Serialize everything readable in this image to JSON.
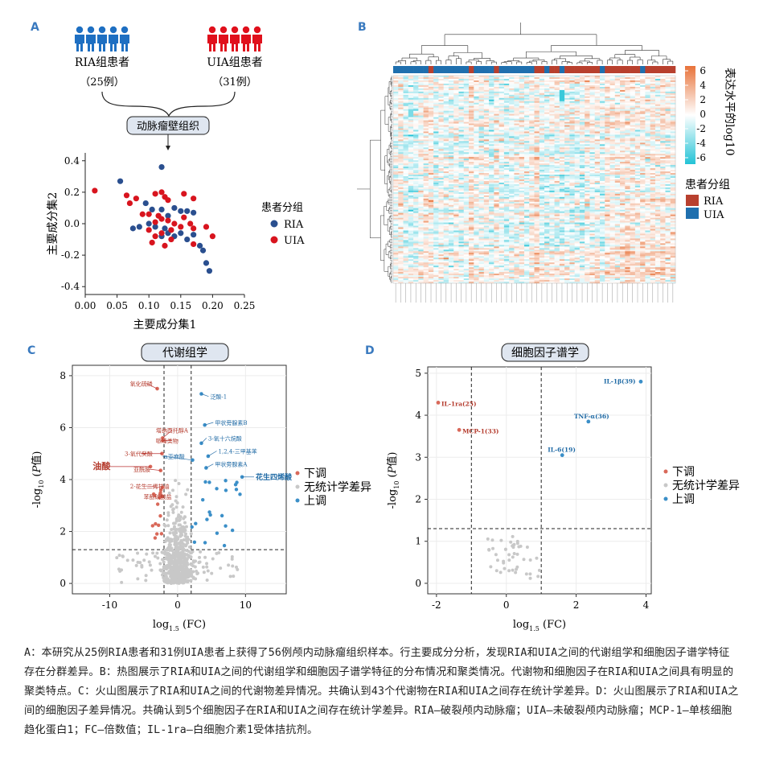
{
  "panels": {
    "a": "A",
    "b": "B",
    "c": "C",
    "d": "D"
  },
  "panel_a": {
    "group1_label": "RIA组患者",
    "group1_count": "（25例）",
    "group2_label": "UIA组患者",
    "group2_count": "（31例）",
    "sample_box": "动脉瘤壁组织",
    "colors": {
      "ria": "#1e6fc2",
      "uia": "#e0101c",
      "ria_point": "#2a4f8f",
      "uia_point": "#d8141e"
    }
  },
  "panel_b": {
    "colorbar_title": "表达水平的log10",
    "colorbar_ticks": [
      "6",
      "4",
      "2",
      "0",
      "-2",
      "-4",
      "-6"
    ],
    "group_legend_title": "患者分组",
    "group_legend": [
      "RIA",
      "UIA"
    ],
    "colors": {
      "high": "#e8733a",
      "mid": "#ffffff",
      "low": "#23c3d6",
      "ria": "#b8402e",
      "uia": "#1f6fae"
    }
  },
  "panel_c": {
    "title": "代谢组学"
  },
  "panel_d": {
    "title": "细胞因子谱学"
  },
  "volcano_legend": {
    "down": "下调",
    "ns": "无统计学差异",
    "up": "上调",
    "colors": {
      "down": "#d9695a",
      "ns": "#c8c8c8",
      "up": "#3b8fc8"
    }
  },
  "caption": "A：本研究从25例RIA患者和31例UIA患者上获得了56例颅内动脉瘤组织样本。行主要成分分析，发现RIA和UIA之间的代谢组学和细胞因子谱学特征存在分群差异。B：热图展示了RIA和UIA之间的代谢组学和细胞因子谱学特征的分布情况和聚类情况。代谢物和细胞因子在RIA和UIA之间具有明显的聚类特点。C：火山图展示了RIA和UIA之间的代谢物差异情况。共确认到43个代谢物在RIA和UIA之间存在统计学差异。D：火山图展示了RIA和UIA之间的细胞因子差异情况。共确认到5个细胞因子在RIA和UIA之间存在统计学差异。RIA—破裂颅内动脉瘤；UIA—未破裂颅内动脉瘤；MCP-1—单核细胞趋化蛋白1；FC—倍数值；IL-1ra—白细胞介素1受体拮抗剂。",
  "chart_data": [
    {
      "type": "scatter",
      "panel": "A",
      "xlabel": "主要成分集1",
      "ylabel": "主要成分集2",
      "xlim": [
        0,
        0.25
      ],
      "ylim": [
        -0.45,
        0.45
      ],
      "xticks": [
        "0.00",
        "0.05",
        "0.10",
        "0.15",
        "0.20",
        "0.25"
      ],
      "yticks": [
        "0.4",
        "0.2",
        "0.0",
        "-0.2",
        "-0.4"
      ],
      "legend_title": "患者分组",
      "series": [
        {
          "name": "RIA",
          "points": [
            [
              0.12,
              0.36
            ],
            [
              0.055,
              0.27
            ],
            [
              0.095,
              0.13
            ],
            [
              0.105,
              0.09
            ],
            [
              0.12,
              0.09
            ],
            [
              0.13,
              0.05
            ],
            [
              0.14,
              0.1
            ],
            [
              0.15,
              0.08
            ],
            [
              0.16,
              0.08
            ],
            [
              0.17,
              0.07
            ],
            [
              0.075,
              -0.03
            ],
            [
              0.085,
              -0.02
            ],
            [
              0.1,
              0.0
            ],
            [
              0.11,
              -0.02
            ],
            [
              0.125,
              -0.03
            ],
            [
              0.13,
              -0.06
            ],
            [
              0.14,
              -0.08
            ],
            [
              0.15,
              -0.06
            ],
            [
              0.16,
              -0.1
            ],
            [
              0.17,
              -0.07
            ],
            [
              0.18,
              -0.14
            ],
            [
              0.185,
              -0.17
            ],
            [
              0.19,
              -0.25
            ],
            [
              0.195,
              -0.3
            ],
            [
              0.12,
              -0.08
            ]
          ]
        },
        {
          "name": "UIA",
          "points": [
            [
              0.015,
              0.21
            ],
            [
              0.065,
              0.18
            ],
            [
              0.08,
              0.16
            ],
            [
              0.11,
              0.19
            ],
            [
              0.12,
              0.2
            ],
            [
              0.125,
              0.17
            ],
            [
              0.13,
              0.15
            ],
            [
              0.155,
              0.19
            ],
            [
              0.17,
              0.16
            ],
            [
              0.07,
              0.13
            ],
            [
              0.09,
              0.06
            ],
            [
              0.1,
              0.06
            ],
            [
              0.115,
              0.05
            ],
            [
              0.12,
              0.03
            ],
            [
              0.13,
              0.02
            ],
            [
              0.14,
              0.0
            ],
            [
              0.155,
              0.04
            ],
            [
              0.165,
              0.0
            ],
            [
              0.11,
              0.01
            ],
            [
              0.1,
              -0.04
            ],
            [
              0.12,
              -0.06
            ],
            [
              0.135,
              -0.04
            ],
            [
              0.15,
              -0.02
            ],
            [
              0.17,
              -0.03
            ],
            [
              0.19,
              -0.02
            ],
            [
              0.2,
              -0.08
            ],
            [
              0.135,
              -0.1
            ],
            [
              0.11,
              -0.08
            ],
            [
              0.17,
              -0.13
            ],
            [
              0.105,
              -0.12
            ],
            [
              0.125,
              -0.14
            ]
          ]
        }
      ]
    },
    {
      "type": "heatmap",
      "panel": "B",
      "colorbar_range": [
        -6,
        6
      ]
    },
    {
      "type": "scatter",
      "panel": "C",
      "title": "代谢组学",
      "xlabel": "log1.5 (FC)",
      "ylabel": "-log10 (P值)",
      "xlim": [
        -15.5,
        16
      ],
      "ylim": [
        -0.4,
        8.4
      ],
      "xticks": [
        -10,
        0,
        10
      ],
      "yticks": [
        0,
        2,
        4,
        6,
        8
      ],
      "thresholds": {
        "fc": [
          -2,
          2
        ],
        "p": 1.3
      },
      "down_labels": [
        {
          "text": "氧化硫磷",
          "x": -3,
          "y": 7.5,
          "lx": -7.0,
          "ly": 7.7
        },
        {
          "text": "塔纳西托醇A",
          "x": -2.2,
          "y": 5.6,
          "lx": -3.2,
          "ly": 5.9
        },
        {
          "text": "哌嗪类物",
          "x": -2.2,
          "y": 5.5,
          "lx": -3.2,
          "ly": 5.5
        },
        {
          "text": "3-氧代癸酸",
          "x": -2.3,
          "y": 5.0,
          "lx": -7.8,
          "ly": 5.0
        },
        {
          "text": "油酸",
          "x": -4,
          "y": 4.5,
          "lx": -12.5,
          "ly": 4.5
        },
        {
          "text": "亚酰胺",
          "x": -2.5,
          "y": 4.35,
          "lx": -6.5,
          "ly": 4.4
        },
        {
          "text": "2-花生二烯甘油",
          "x": -2.2,
          "y": 3.7,
          "lx": -7.0,
          "ly": 3.75
        },
        {
          "text": "苯酚硫酸盐",
          "x": -2.3,
          "y": 3.35,
          "lx": -5.0,
          "ly": 3.35
        }
      ],
      "up_labels": [
        {
          "text": "泛酸-1",
          "x": 3.5,
          "y": 7.3,
          "lx": 4.8,
          "ly": 7.2
        },
        {
          "text": "甲状旁腺素B",
          "x": 4,
          "y": 6.1,
          "lx": 5.5,
          "ly": 6.2
        },
        {
          "text": "3-氧十六烷酸",
          "x": 3.5,
          "y": 5.4,
          "lx": 4.5,
          "ly": 5.6
        },
        {
          "text": "1,2,4-三甲基苯",
          "x": 4.5,
          "y": 4.9,
          "lx": 6.0,
          "ly": 5.1
        },
        {
          "text": "α亚麻酸",
          "x": 2.2,
          "y": 4.75,
          "lx": -2.0,
          "ly": 4.9
        },
        {
          "text": "甲状旁腺素A",
          "x": 4.2,
          "y": 4.45,
          "lx": 5.5,
          "ly": 4.6
        },
        {
          "text": "花生四烯酸",
          "x": 9.5,
          "y": 4.1,
          "lx": 11.5,
          "ly": 4.1
        }
      ]
    },
    {
      "type": "scatter",
      "panel": "D",
      "title": "细胞因子谱学",
      "xlabel": "log1.5 (FC)",
      "ylabel": "-log10 (P值)",
      "xlim": [
        -2.25,
        4.15
      ],
      "ylim": [
        -0.25,
        5.15
      ],
      "xticks": [
        -2,
        0,
        2,
        4
      ],
      "yticks": [
        0,
        1,
        2,
        3,
        4,
        5
      ],
      "thresholds": {
        "fc": [
          -1,
          1
        ],
        "p": 1.3
      },
      "down": [
        {
          "label": "IL-1ra(25)",
          "x": -1.95,
          "y": 4.3
        },
        {
          "label": "MCP-1(33)",
          "x": -1.35,
          "y": 3.65
        }
      ],
      "up": [
        {
          "label": "IL-1β(39)",
          "x": 3.85,
          "y": 4.8
        },
        {
          "label": "TNF-α(36)",
          "x": 2.35,
          "y": 3.85
        },
        {
          "label": "IL-6(19)",
          "x": 1.6,
          "y": 3.05
        }
      ]
    }
  ]
}
